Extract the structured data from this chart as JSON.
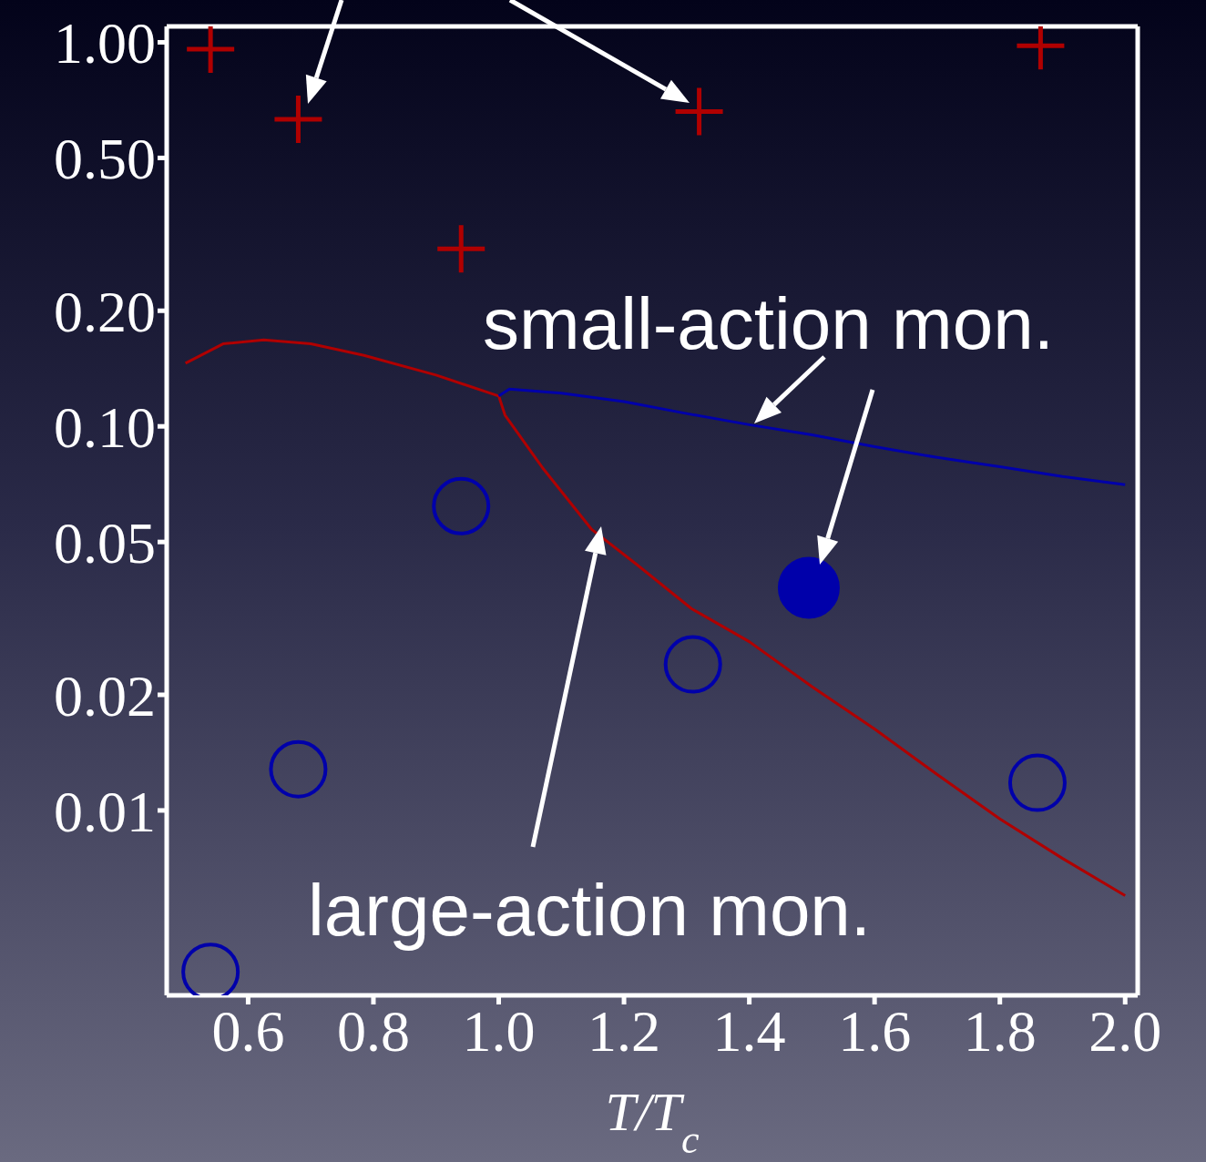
{
  "chart_data": {
    "type": "scatter",
    "xlabel": "T/T$_{c}$",
    "log": "y",
    "grid": false,
    "xlim": [
      0.47,
      2.02
    ],
    "ylim": [
      0.0033,
      1.1
    ],
    "xticks": [
      0.6,
      0.8,
      {
        "value": 1,
        "label": "1.0"
      },
      1.2,
      1.4,
      1.6,
      1.8,
      {
        "value": 2,
        "label": "2.0"
      }
    ],
    "yticks": [
      0.01,
      0.02,
      0.05,
      {
        "value": 0.1,
        "label": "0.10"
      },
      {
        "value": 0.2,
        "label": "0.20"
      },
      {
        "value": 0.5,
        "label": "0.50"
      },
      {
        "value": 1,
        "label": "1.00"
      }
    ],
    "annotations": [
      "small-action mon.",
      "large-action mon."
    ],
    "series": [
      {
        "type": "line",
        "color": "#b00000",
        "marker": "none",
        "line_style": "solid",
        "x": [
          0.5,
          0.56,
          0.625,
          0.7,
          0.785,
          0.9,
          1.0,
          1.01,
          1.07,
          1.148,
          1.221,
          1.308,
          1.4,
          1.5,
          1.6,
          1.7,
          1.8,
          1.9,
          2.0
        ],
        "values": [
          0.146,
          0.164,
          0.168,
          0.164,
          0.153,
          0.136,
          0.12,
          0.107,
          0.078,
          0.054,
          0.0436,
          0.0335,
          0.0275,
          0.021,
          0.0163,
          0.0124,
          0.0095,
          0.0075,
          0.006
        ]
      },
      {
        "type": "line",
        "color": "#0000aa",
        "marker": "none",
        "line_style": "solid",
        "x": [
          1.0,
          1.017,
          1.1,
          1.2,
          1.3,
          1.4,
          1.5,
          1.6,
          1.7,
          1.8,
          1.9,
          2.0
        ],
        "values": [
          0.12,
          0.125,
          0.122,
          0.116,
          0.108,
          0.101,
          0.095,
          0.0885,
          0.083,
          0.0785,
          0.074,
          0.0705
        ]
      },
      {
        "type": "scatter",
        "color": "#b00000",
        "marker": "cross",
        "x": [
          0.54,
          0.68,
          0.94,
          1.32,
          1.865
        ],
        "values": [
          0.96,
          0.63,
          0.29,
          0.66,
          0.98
        ]
      },
      {
        "type": "scatter",
        "color": "#0000aa",
        "marker": "circle",
        "x": [
          0.54,
          0.68,
          0.94,
          1.31,
          1.86
        ],
        "values": [
          0.0038,
          0.0128,
          0.062,
          0.024,
          0.0118
        ]
      },
      {
        "type": "scatter",
        "color": "#0000aa",
        "marker": "circle",
        "x": [
          1.495
        ],
        "values": [
          0.038
        ]
      }
    ]
  }
}
